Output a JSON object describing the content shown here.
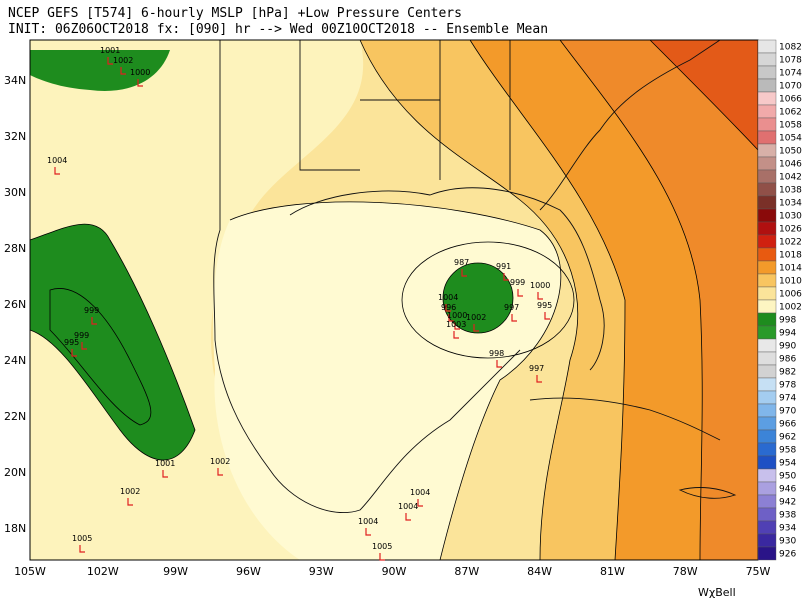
{
  "header": {
    "line1": "NCEP GEFS [T574] 6-hourly MSLP [hPa]   +Low Pressure Centers",
    "line2": "INIT: 06Z06OCT2018 fx: [090] hr --> Wed 00Z10OCT2018 -- Ensemble Mean"
  },
  "longitudes": [
    "105W",
    "102W",
    "99W",
    "96W",
    "93W",
    "90W",
    "87W",
    "84W",
    "81W",
    "78W",
    "75W"
  ],
  "latitudes": [
    "34N",
    "32N",
    "30N",
    "28N",
    "26N",
    "24N",
    "22N",
    "20N",
    "18N"
  ],
  "colorbar": [
    {
      "value": 1082,
      "color": "#e6e6e6"
    },
    {
      "value": 1078,
      "color": "#d6d6d6"
    },
    {
      "value": 1074,
      "color": "#c8c8c8"
    },
    {
      "value": 1070,
      "color": "#bababa"
    },
    {
      "value": 1066,
      "color": "#f7c9c9"
    },
    {
      "value": 1062,
      "color": "#f1aaaa"
    },
    {
      "value": 1058,
      "color": "#ea8f8f"
    },
    {
      "value": 1054,
      "color": "#e07070"
    },
    {
      "value": 1050,
      "color": "#d8b0a8"
    },
    {
      "value": 1046,
      "color": "#c39088"
    },
    {
      "value": 1042,
      "color": "#a87068"
    },
    {
      "value": 1038,
      "color": "#905048"
    },
    {
      "value": 1034,
      "color": "#7a3028"
    },
    {
      "value": 1030,
      "color": "#8a0a0a"
    },
    {
      "value": 1026,
      "color": "#b01010"
    },
    {
      "value": 1022,
      "color": "#d02010"
    },
    {
      "value": 1018,
      "color": "#e85a10"
    },
    {
      "value": 1014,
      "color": "#f39a2a"
    },
    {
      "value": 1010,
      "color": "#f8c560"
    },
    {
      "value": 1006,
      "color": "#fbe49a"
    },
    {
      "value": 1002,
      "color": "#fdf5c2"
    },
    {
      "value": 998,
      "color": "#1e8c1e"
    },
    {
      "value": 994,
      "color": "#2a9a2a"
    },
    {
      "value": 990,
      "color": "#e8e8e8"
    },
    {
      "value": 986,
      "color": "#dedede"
    },
    {
      "value": 982,
      "color": "#d2d2d2"
    },
    {
      "value": 978,
      "color": "#c6e0f4"
    },
    {
      "value": 974,
      "color": "#a4cdf0"
    },
    {
      "value": 970,
      "color": "#80b6ea"
    },
    {
      "value": 966,
      "color": "#5c9ee2"
    },
    {
      "value": 962,
      "color": "#3c84d8"
    },
    {
      "value": 958,
      "color": "#2a6ad0"
    },
    {
      "value": 954,
      "color": "#1e50c4"
    },
    {
      "value": 950,
      "color": "#c8c0ec"
    },
    {
      "value": 946,
      "color": "#aaa0e0"
    },
    {
      "value": 942,
      "color": "#8c80d4"
    },
    {
      "value": 938,
      "color": "#6e60c6"
    },
    {
      "value": 934,
      "color": "#5040b4"
    },
    {
      "value": 930,
      "color": "#3a28a0"
    },
    {
      "value": 926,
      "color": "#2a1488"
    }
  ],
  "lows": [
    "1001",
    "1002",
    "1000",
    "1004",
    "999",
    "999",
    "995",
    "1001",
    "1002",
    "987",
    "991",
    "999",
    "1000",
    "1004",
    "995",
    "997",
    "996",
    "1000",
    "1002",
    "1003",
    "997",
    "998",
    "1004",
    "1004",
    "1004",
    "1005",
    "1005",
    "1002"
  ],
  "brand": "WχBell"
}
